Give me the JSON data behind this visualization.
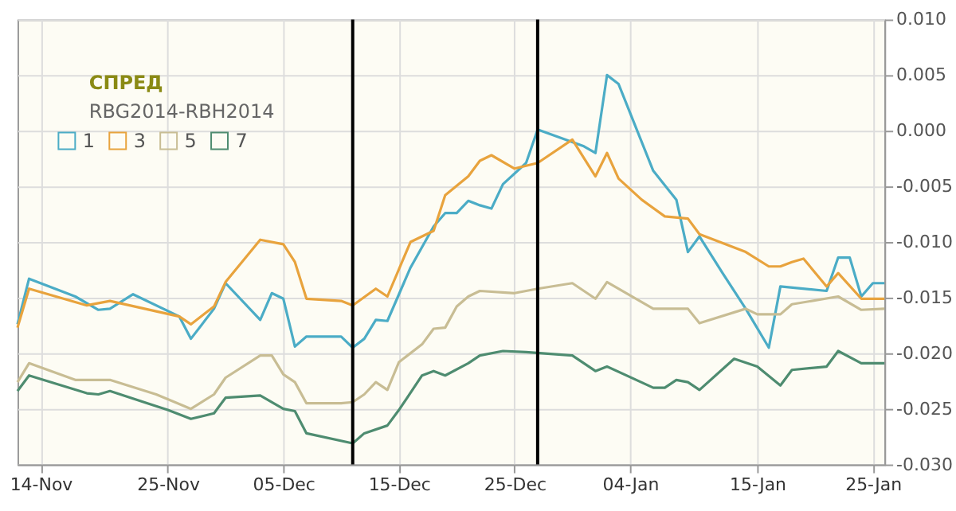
{
  "chart_data": {
    "type": "line",
    "title": "СПРЕД",
    "subtitle": "RBG2014-RBH2014",
    "series": [
      {
        "name": "1",
        "color": "#4bacc6",
        "x": [
          "2014-11-12",
          "2014-11-13",
          "2014-11-17",
          "2014-11-19",
          "2014-11-20",
          "2014-11-22",
          "2014-11-26",
          "2014-11-27",
          "2014-11-29",
          "2014-11-30",
          "2014-12-03",
          "2014-12-04",
          "2014-12-05",
          "2014-12-06",
          "2014-12-07",
          "2014-12-10",
          "2014-12-11",
          "2014-12-12",
          "2014-12-13",
          "2014-12-14",
          "2014-12-16",
          "2014-12-18",
          "2014-12-19",
          "2014-12-20",
          "2014-12-21",
          "2014-12-22",
          "2014-12-23",
          "2014-12-24",
          "2014-12-26",
          "2014-12-27",
          "2014-12-31",
          "2015-01-01",
          "2015-01-02",
          "2015-01-03",
          "2015-01-06",
          "2015-01-08",
          "2015-01-09",
          "2015-01-10",
          "2015-01-12",
          "2015-01-14",
          "2015-01-16",
          "2015-01-17",
          "2015-01-21",
          "2015-01-22",
          "2015-01-23",
          "2015-01-24",
          "2015-01-25",
          "2015-01-26"
        ],
        "values": [
          -0.0174,
          -0.0133,
          -0.0149,
          -0.0161,
          -0.016,
          -0.0147,
          -0.0167,
          -0.0187,
          -0.016,
          -0.0137,
          -0.017,
          -0.0146,
          -0.0151,
          -0.0194,
          -0.0185,
          -0.0185,
          -0.0195,
          -0.0187,
          -0.017,
          -0.0171,
          -0.0123,
          -0.0086,
          -0.0074,
          -0.0074,
          -0.0063,
          -0.0067,
          -0.007,
          -0.0048,
          -0.0029,
          0.0001,
          -0.0014,
          -0.002,
          0.005,
          0.0042,
          -0.0036,
          -0.0062,
          -0.0109,
          -0.0095,
          -0.0128,
          -0.016,
          -0.0195,
          -0.014,
          -0.0144,
          -0.0114,
          -0.0114,
          -0.0149,
          -0.0137,
          -0.0137
        ]
      },
      {
        "name": "3",
        "color": "#e8a33d",
        "x": [
          "2014-11-12",
          "2014-11-13",
          "2014-11-18",
          "2014-11-20",
          "2014-11-26",
          "2014-11-27",
          "2014-11-29",
          "2014-11-30",
          "2014-12-03",
          "2014-12-05",
          "2014-12-06",
          "2014-12-07",
          "2014-12-10",
          "2014-12-11",
          "2014-12-13",
          "2014-12-14",
          "2014-12-16",
          "2014-12-18",
          "2014-12-19",
          "2014-12-21",
          "2014-12-22",
          "2014-12-23",
          "2014-12-25",
          "2014-12-27",
          "2014-12-30",
          "2015-01-01",
          "2015-01-02",
          "2015-01-03",
          "2015-01-05",
          "2015-01-07",
          "2015-01-09",
          "2015-01-10",
          "2015-01-14",
          "2015-01-16",
          "2015-01-17",
          "2015-01-18",
          "2015-01-19",
          "2015-01-21",
          "2015-01-22",
          "2015-01-24",
          "2015-01-26"
        ],
        "values": [
          -0.0177,
          -0.0142,
          -0.0157,
          -0.0153,
          -0.0167,
          -0.0174,
          -0.0158,
          -0.0136,
          -0.0098,
          -0.0102,
          -0.0118,
          -0.0151,
          -0.0153,
          -0.0157,
          -0.0142,
          -0.0149,
          -0.01,
          -0.009,
          -0.0058,
          -0.0041,
          -0.0027,
          -0.0022,
          -0.0034,
          -0.0029,
          -0.0008,
          -0.0041,
          -0.002,
          -0.0043,
          -0.0062,
          -0.0077,
          -0.0079,
          -0.0093,
          -0.0109,
          -0.0122,
          -0.0122,
          -0.0118,
          -0.0115,
          -0.014,
          -0.0128,
          -0.0151,
          -0.0151
        ]
      },
      {
        "name": "5",
        "color": "#c8bd94",
        "x": [
          "2014-11-12",
          "2014-11-13",
          "2014-11-17",
          "2014-11-20",
          "2014-11-24",
          "2014-11-27",
          "2014-11-29",
          "2014-11-30",
          "2014-12-03",
          "2014-12-04",
          "2014-12-05",
          "2014-12-06",
          "2014-12-07",
          "2014-12-10",
          "2014-12-11",
          "2014-12-12",
          "2014-12-13",
          "2014-12-14",
          "2014-12-15",
          "2014-12-17",
          "2014-12-18",
          "2014-12-19",
          "2014-12-20",
          "2014-12-21",
          "2014-12-22",
          "2014-12-25",
          "2014-12-27",
          "2014-12-30",
          "2015-01-01",
          "2015-01-02",
          "2015-01-06",
          "2015-01-09",
          "2015-01-10",
          "2015-01-14",
          "2015-01-15",
          "2015-01-17",
          "2015-01-18",
          "2015-01-22",
          "2015-01-24",
          "2015-01-26"
        ],
        "values": [
          -0.0226,
          -0.0209,
          -0.0224,
          -0.0224,
          -0.0237,
          -0.025,
          -0.0237,
          -0.0222,
          -0.0202,
          -0.0202,
          -0.0219,
          -0.0226,
          -0.0245,
          -0.0245,
          -0.0244,
          -0.0237,
          -0.0226,
          -0.0233,
          -0.0208,
          -0.0192,
          -0.0178,
          -0.0177,
          -0.0158,
          -0.0149,
          -0.0144,
          -0.0146,
          -0.0142,
          -0.0137,
          -0.0151,
          -0.0136,
          -0.016,
          -0.016,
          -0.0173,
          -0.016,
          -0.0165,
          -0.0165,
          -0.0156,
          -0.0149,
          -0.0161,
          -0.016
        ]
      },
      {
        "name": "7",
        "color": "#4e8c70",
        "x": [
          "2014-11-12",
          "2014-11-13",
          "2014-11-18",
          "2014-11-19",
          "2014-11-20",
          "2014-11-25",
          "2014-11-27",
          "2014-11-29",
          "2014-11-30",
          "2014-12-03",
          "2014-12-05",
          "2014-12-06",
          "2014-12-07",
          "2014-12-11",
          "2014-12-12",
          "2014-12-14",
          "2014-12-15",
          "2014-12-17",
          "2014-12-18",
          "2014-12-19",
          "2014-12-21",
          "2014-12-22",
          "2014-12-24",
          "2014-12-26",
          "2014-12-30",
          "2015-01-01",
          "2015-01-02",
          "2015-01-06",
          "2015-01-07",
          "2015-01-08",
          "2015-01-09",
          "2015-01-10",
          "2015-01-13",
          "2015-01-15",
          "2015-01-17",
          "2015-01-18",
          "2015-01-21",
          "2015-01-22",
          "2015-01-24",
          "2015-01-26"
        ],
        "values": [
          -0.0234,
          -0.022,
          -0.0236,
          -0.0237,
          -0.0234,
          -0.0251,
          -0.0259,
          -0.0254,
          -0.024,
          -0.0238,
          -0.025,
          -0.0252,
          -0.0272,
          -0.0281,
          -0.0272,
          -0.0265,
          -0.0251,
          -0.022,
          -0.0216,
          -0.022,
          -0.0209,
          -0.0202,
          -0.0198,
          -0.0199,
          -0.0202,
          -0.0216,
          -0.0212,
          -0.0231,
          -0.0231,
          -0.0224,
          -0.0226,
          -0.0233,
          -0.0205,
          -0.0212,
          -0.0229,
          -0.0215,
          -0.0212,
          -0.0198,
          -0.0209,
          -0.0209
        ]
      }
    ],
    "xlim": [
      "2014-11-12",
      "2015-01-26"
    ],
    "xticks": [
      {
        "value": "2014-11-14",
        "label": "14-Nov"
      },
      {
        "value": "2014-11-25",
        "label": "25-Nov"
      },
      {
        "value": "2014-12-05",
        "label": "05-Dec"
      },
      {
        "value": "2014-12-15",
        "label": "15-Dec"
      },
      {
        "value": "2014-12-25",
        "label": "25-Dec"
      },
      {
        "value": "2015-01-04",
        "label": "04-Jan"
      },
      {
        "value": "2015-01-15",
        "label": "15-Jan"
      },
      {
        "value": "2015-01-25",
        "label": "25-Jan"
      }
    ],
    "ylim": [
      -0.03,
      0.01
    ],
    "yticks": [
      {
        "value": -0.03,
        "label": "-0.030"
      },
      {
        "value": -0.025,
        "label": "-0.025"
      },
      {
        "value": -0.02,
        "label": "-0.020"
      },
      {
        "value": -0.015,
        "label": "-0.015"
      },
      {
        "value": -0.01,
        "label": "-0.010"
      },
      {
        "value": -0.005,
        "label": "-0.005"
      },
      {
        "value": 0,
        "label": "0.000"
      },
      {
        "value": 0.005,
        "label": "0.005"
      },
      {
        "value": 0.01,
        "label": "0.010"
      }
    ],
    "ref_lines": [
      {
        "axis": "x",
        "value": "2014-12-11",
        "color": "#000000"
      },
      {
        "axis": "x",
        "value": "2014-12-27",
        "color": "#000000"
      }
    ],
    "grid": true,
    "legend": "top left",
    "marker": "none",
    "line_style": "solid"
  }
}
